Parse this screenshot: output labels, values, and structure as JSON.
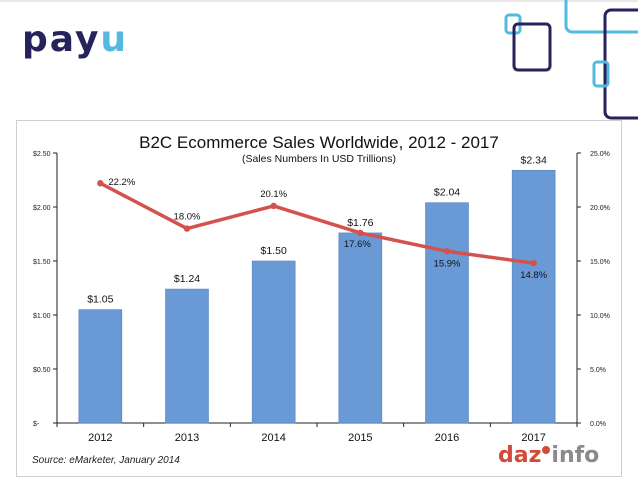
{
  "header": {
    "logo_main": "pay",
    "logo_accent": "u"
  },
  "footer": {
    "source": "Source: eMarketer, January 2014",
    "brand_part1": "daz",
    "brand_part2": "info"
  },
  "chart_data": {
    "type": "bar",
    "title": "B2C Ecommerce Sales Worldwide, 2012 - 2017",
    "subtitle": "(Sales Numbers In USD Trillions)",
    "categories": [
      "2012",
      "2013",
      "2014",
      "2015",
      "2016",
      "2017"
    ],
    "series": [
      {
        "type": "bar",
        "values": [
          1.05,
          1.24,
          1.5,
          1.76,
          2.04,
          2.34
        ],
        "labels": [
          "$1.05",
          "$1.24",
          "$1.50",
          "$1.76",
          "$2.04",
          "$2.34"
        ],
        "color": "#6a9ad6"
      },
      {
        "type": "line",
        "axis": "right",
        "values": [
          22.2,
          18.0,
          20.1,
          17.6,
          15.9,
          14.8
        ],
        "labels": [
          "22.2%",
          "18.0%",
          "20.1%",
          "17.6%",
          "15.9%",
          "14.8%"
        ],
        "color": "#d4524e"
      }
    ],
    "y_left": {
      "ylim": [
        0,
        2.5
      ],
      "ticks": [
        0,
        0.5,
        1.0,
        1.5,
        2.0,
        2.5
      ],
      "tick_labels": [
        "$-",
        "$0.50",
        "$1.00",
        "$1.50",
        "$2.00",
        "$2.50"
      ]
    },
    "y_right": {
      "ylim": [
        0,
        25
      ],
      "ticks": [
        0,
        5,
        10,
        15,
        20,
        25
      ],
      "tick_labels": [
        "0.0%",
        "5.0%",
        "10.0%",
        "15.0%",
        "20.0%",
        "25.0%"
      ]
    },
    "grid": false,
    "legend": "none"
  }
}
